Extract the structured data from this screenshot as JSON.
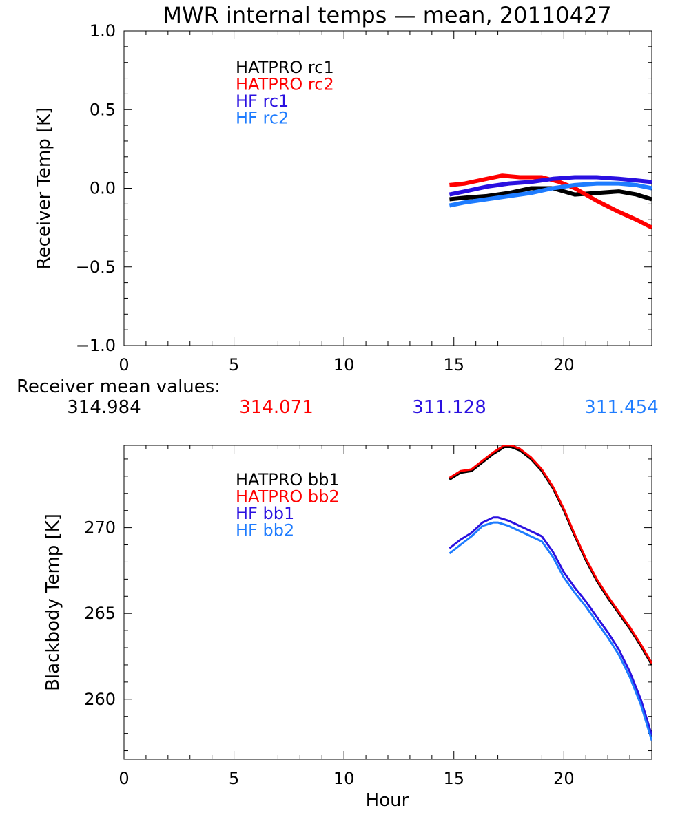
{
  "title": "MWR internal temps — mean, 20110427",
  "mean_values": {
    "label": "Receiver mean values:",
    "values": [
      {
        "text": "314.984",
        "color": "#000000"
      },
      {
        "text": "314.071",
        "color": "#ff0000"
      },
      {
        "text": "311.128",
        "color": "#2a10e0"
      },
      {
        "text": "311.454",
        "color": "#1e7cff"
      }
    ]
  },
  "chart_data": [
    {
      "type": "line",
      "title": "MWR internal temps — mean, 20110427",
      "xlabel": "",
      "ylabel": "Receiver Temp [K]",
      "xlim": [
        0,
        24
      ],
      "ylim": [
        -1.0,
        1.0
      ],
      "x_ticks": [
        0,
        5,
        10,
        15,
        20
      ],
      "x_tick_labels": [
        "0",
        "5",
        "10",
        "15",
        "20"
      ],
      "y_ticks": [
        -1.0,
        -0.5,
        0.0,
        0.5,
        1.0
      ],
      "y_tick_labels": [
        "−1.0",
        "−0.5",
        "0.0",
        "0.5",
        "1.0"
      ],
      "legend_position": "top-left",
      "series": [
        {
          "name": "HATPRO rc1",
          "color": "#000000",
          "x": [
            14.8,
            15.5,
            16.5,
            17.5,
            18.5,
            19.5,
            20.5,
            21.5,
            22.5,
            23.3,
            24.0
          ],
          "y": [
            -0.07,
            -0.06,
            -0.05,
            -0.03,
            0.0,
            0.0,
            -0.04,
            -0.03,
            -0.02,
            -0.04,
            -0.07
          ]
        },
        {
          "name": "HATPRO rc2",
          "color": "#ff0000",
          "x": [
            14.8,
            15.5,
            16.5,
            17.2,
            18.0,
            19.0,
            19.8,
            20.5,
            21.5,
            22.5,
            23.3,
            24.0
          ],
          "y": [
            0.02,
            0.03,
            0.06,
            0.08,
            0.07,
            0.07,
            0.04,
            0.0,
            -0.08,
            -0.15,
            -0.2,
            -0.25
          ]
        },
        {
          "name": "HF rc1",
          "color": "#2a10e0",
          "x": [
            14.8,
            15.5,
            16.5,
            17.5,
            18.5,
            19.5,
            20.5,
            21.5,
            22.5,
            23.3,
            24.0
          ],
          "y": [
            -0.04,
            -0.02,
            0.01,
            0.03,
            0.04,
            0.06,
            0.07,
            0.07,
            0.06,
            0.05,
            0.04
          ]
        },
        {
          "name": "HF rc2",
          "color": "#1e7cff",
          "x": [
            14.8,
            15.5,
            16.5,
            17.5,
            18.5,
            19.5,
            20.5,
            21.5,
            22.5,
            23.3,
            24.0
          ],
          "y": [
            -0.11,
            -0.09,
            -0.07,
            -0.05,
            -0.03,
            0.0,
            0.02,
            0.03,
            0.03,
            0.02,
            0.0
          ]
        }
      ]
    },
    {
      "type": "line",
      "xlabel": "Hour",
      "ylabel": "Blackbody Temp [K]",
      "xlim": [
        0,
        24
      ],
      "ylim": [
        256.5,
        274.8
      ],
      "x_ticks": [
        0,
        5,
        10,
        15,
        20
      ],
      "x_tick_labels": [
        "0",
        "5",
        "10",
        "15",
        "20"
      ],
      "y_ticks": [
        260,
        265,
        270
      ],
      "y_tick_labels": [
        "260",
        "265",
        "270"
      ],
      "legend_position": "top-left",
      "series": [
        {
          "name": "HATPRO bb1",
          "color": "#000000",
          "x": [
            14.8,
            15.3,
            15.8,
            16.3,
            16.8,
            17.3,
            17.6,
            18.0,
            18.5,
            19.0,
            19.5,
            20.0,
            20.5,
            21.0,
            21.5,
            22.0,
            22.5,
            23.0,
            23.5,
            24.0
          ],
          "y": [
            272.8,
            273.2,
            273.3,
            273.8,
            274.3,
            274.7,
            274.7,
            274.5,
            274.0,
            273.3,
            272.3,
            271.0,
            269.5,
            268.1,
            266.9,
            265.9,
            265.0,
            264.1,
            263.1,
            262.0
          ]
        },
        {
          "name": "HATPRO bb2",
          "color": "#ff0000",
          "x": [
            14.8,
            15.3,
            15.8,
            16.3,
            16.8,
            17.3,
            17.6,
            18.0,
            18.5,
            19.0,
            19.5,
            20.0,
            20.5,
            21.0,
            21.5,
            22.0,
            22.5,
            23.0,
            23.5,
            24.0
          ],
          "y": [
            272.9,
            273.3,
            273.4,
            273.9,
            274.4,
            274.8,
            274.8,
            274.6,
            274.1,
            273.4,
            272.4,
            271.1,
            269.6,
            268.2,
            267.0,
            266.0,
            265.1,
            264.2,
            263.2,
            262.1
          ]
        },
        {
          "name": "HF bb1",
          "color": "#2a10e0",
          "x": [
            14.8,
            15.3,
            15.8,
            16.3,
            16.8,
            17.0,
            17.5,
            18.0,
            18.5,
            19.0,
            19.5,
            20.0,
            20.5,
            21.0,
            21.5,
            22.0,
            22.5,
            23.0,
            23.5,
            24.0
          ],
          "y": [
            268.8,
            269.3,
            269.7,
            270.3,
            270.6,
            270.6,
            270.4,
            270.1,
            269.8,
            269.5,
            268.6,
            267.4,
            266.5,
            265.7,
            264.8,
            263.9,
            262.9,
            261.6,
            260.0,
            257.9
          ]
        },
        {
          "name": "HF bb2",
          "color": "#1e7cff",
          "x": [
            14.8,
            15.3,
            15.8,
            16.3,
            16.8,
            17.0,
            17.5,
            18.0,
            18.5,
            19.0,
            19.5,
            20.0,
            20.5,
            21.0,
            21.5,
            22.0,
            22.5,
            23.0,
            23.5,
            24.0
          ],
          "y": [
            268.5,
            269.0,
            269.5,
            270.1,
            270.3,
            270.3,
            270.1,
            269.8,
            269.5,
            269.2,
            268.3,
            267.1,
            266.2,
            265.4,
            264.5,
            263.6,
            262.6,
            261.3,
            259.7,
            257.6
          ]
        }
      ]
    }
  ]
}
